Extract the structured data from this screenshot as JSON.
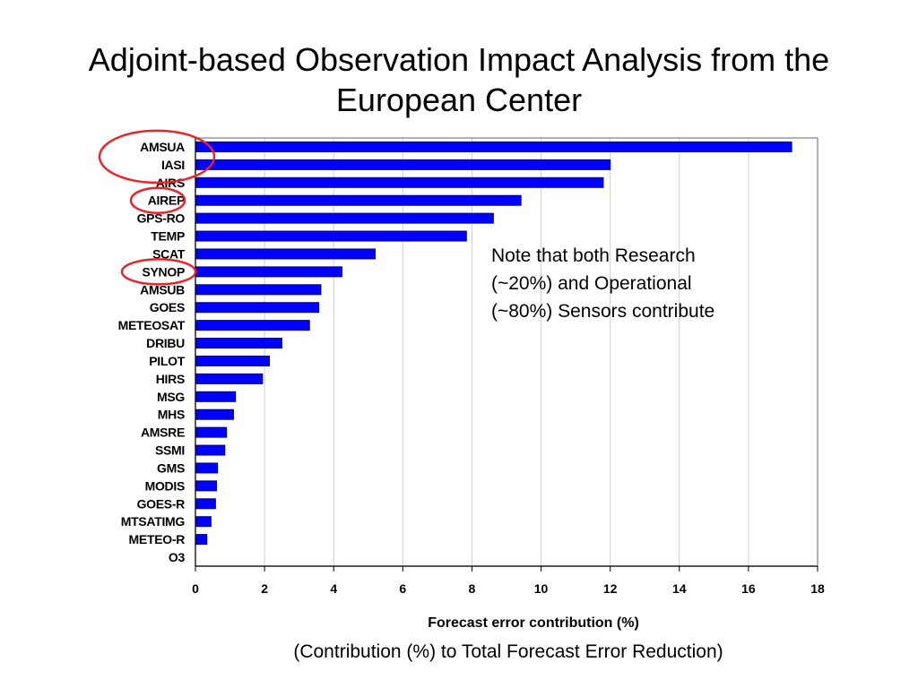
{
  "slide": {
    "title": "Adjoint-based Observation Impact Analysis from the European Center",
    "note": "Note  that both Research\n(~20%) and Operational\n(~80%) Sensors contribute",
    "subtitle": "(Contribution (%) to Total Forecast Error Reduction)"
  },
  "colors": {
    "bar_fill": "#0000ff",
    "bar_stroke": "#000080",
    "highlight_circle": "#e8252a",
    "gridline": "#d0d0d0"
  },
  "highlighted_categories": [
    "AMSUA",
    "IASI",
    "AIREP",
    "SYNOP"
  ],
  "chart_data": {
    "type": "bar",
    "orientation": "horizontal",
    "categories": [
      "AMSUA",
      "IASI",
      "AIRS",
      "AIREP",
      "GPS-RO",
      "TEMP",
      "SCAT",
      "SYNOP",
      "AMSUB",
      "GOES",
      "METEOSAT",
      "DRIBU",
      "PILOT",
      "HIRS",
      "MSG",
      "MHS",
      "AMSRE",
      "SSMI",
      "GMS",
      "MODIS",
      "GOES-R",
      "MTSATIMG",
      "METEO-R",
      "O3"
    ],
    "values": [
      17.25,
      12.0,
      11.8,
      9.42,
      8.62,
      7.84,
      5.2,
      4.24,
      3.63,
      3.57,
      3.3,
      2.5,
      2.14,
      1.94,
      1.16,
      1.1,
      0.9,
      0.85,
      0.64,
      0.61,
      0.58,
      0.45,
      0.33,
      0.0
    ],
    "xlabel": "Forecast error contribution (%)",
    "ylabel": "",
    "xlim": [
      0,
      18
    ],
    "xticks": [
      "0",
      "2",
      "4",
      "6",
      "8",
      "10",
      "12",
      "14",
      "16",
      "18"
    ],
    "grid": "vertical",
    "legend": "none"
  }
}
